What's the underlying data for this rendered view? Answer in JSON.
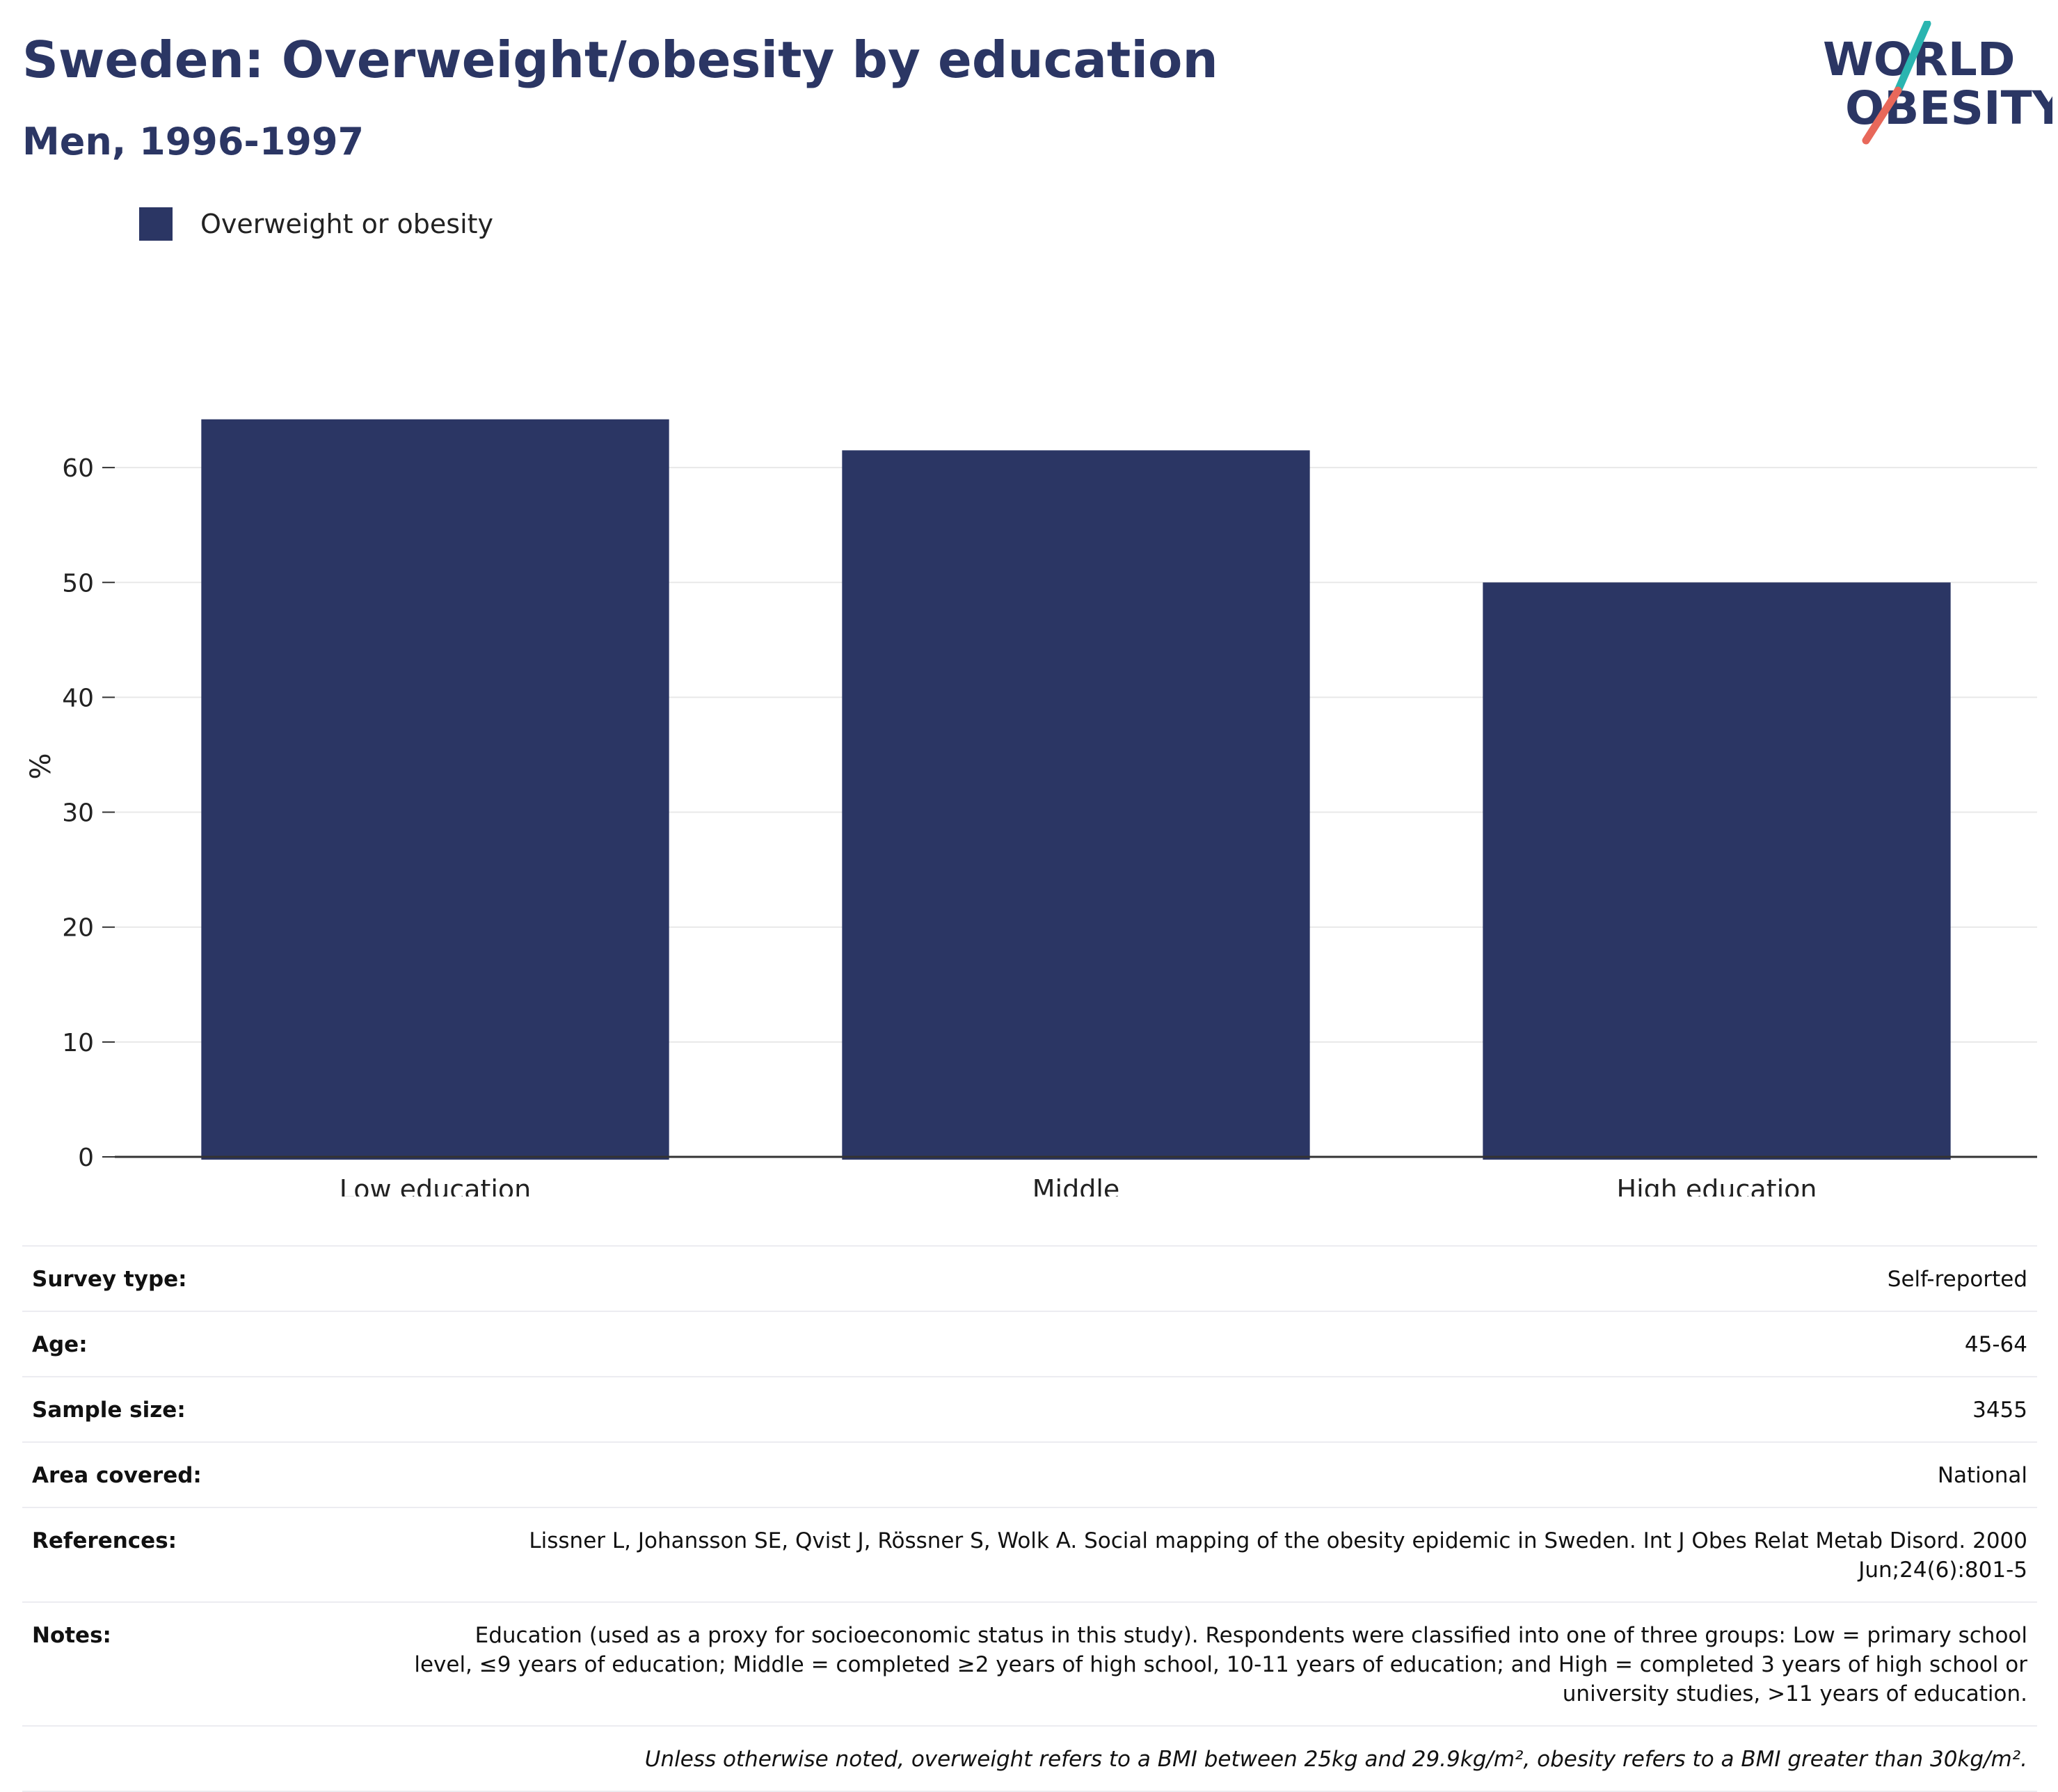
{
  "header": {
    "title": "Sweden: Overweight/obesity by education",
    "subtitle": "Men, 1996-1997"
  },
  "logo": {
    "line1": "WORLD",
    "line2": "OBESITY",
    "slash_top_color": "#2ab5b0",
    "slash_bottom_color": "#e8685a",
    "text_color": "#2b3664"
  },
  "colors": {
    "bar": "#2b3664",
    "grid": "#e8e8e8",
    "axis": "#333333"
  },
  "chart_data": {
    "type": "bar",
    "categories": [
      "Low education",
      "Middle",
      "High education"
    ],
    "series": [
      {
        "name": "Overweight or obesity",
        "values": [
          64.2,
          61.5,
          50.0
        ]
      }
    ],
    "ylabel": "%",
    "xlabel": "",
    "ylim": [
      0,
      68
    ],
    "yticks": [
      0,
      10,
      20,
      30,
      40,
      50,
      60
    ],
    "grid": true,
    "legend_position": "top-left"
  },
  "info": {
    "rows": [
      {
        "label": "Survey type:",
        "value": "Self-reported"
      },
      {
        "label": "Age:",
        "value": "45-64"
      },
      {
        "label": "Sample size:",
        "value": "3455"
      },
      {
        "label": "Area covered:",
        "value": "National"
      },
      {
        "label": "References:",
        "value": "Lissner L, Johansson SE, Qvist J, Rössner S, Wolk A. Social mapping of the obesity epidemic in Sweden. Int J Obes Relat Metab Disord. 2000 Jun;24(6):801-5"
      },
      {
        "label": "Notes:",
        "value": "Education (used as a proxy for socioeconomic status in this study). Respondents were classified into one of three groups: Low = primary school level, ≤9 years of education; Middle = completed ≥2 years of high school, 10-11 years of education; and High = completed 3 years of high school or university studies, >11 years of education."
      }
    ],
    "footnote": "Unless otherwise noted, overweight refers to a BMI between 25kg and 29.9kg/m², obesity refers to a BMI greater than 30kg/m²."
  }
}
